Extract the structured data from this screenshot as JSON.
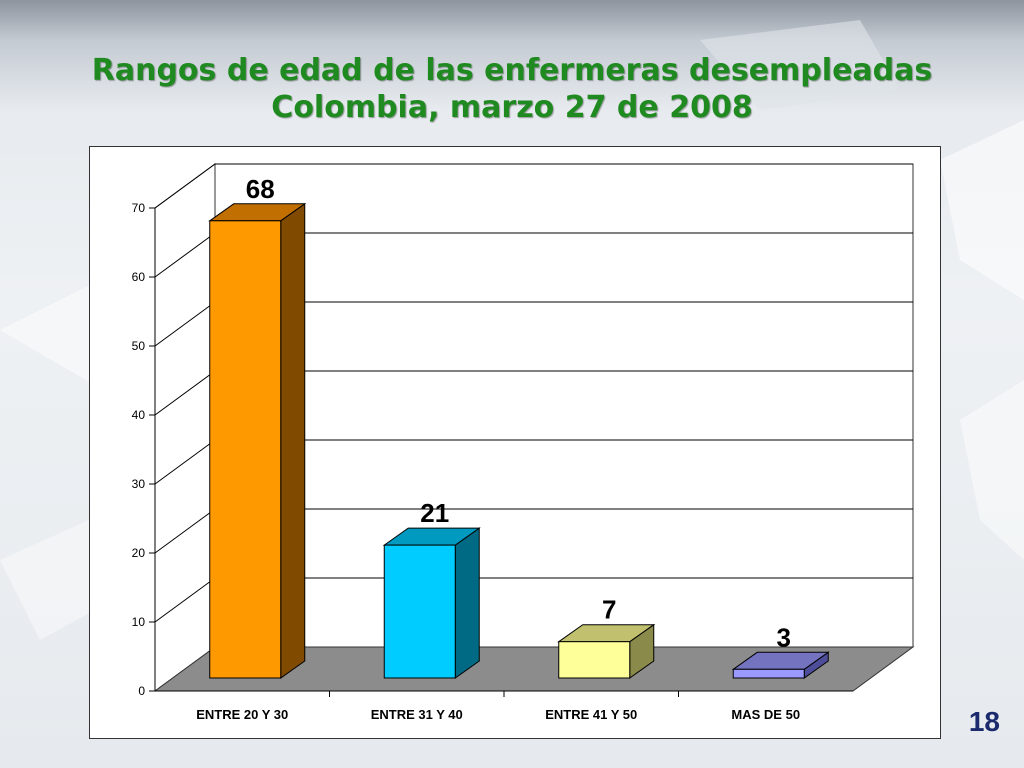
{
  "slide": {
    "title_line1": "Rangos de edad de las enfermeras desempleadas",
    "title_line2": "Colombia, marzo 27 de 2008",
    "page_number": "18"
  },
  "chart_data": {
    "type": "bar",
    "categories": [
      "ENTRE 20 Y 30",
      "ENTRE 31 Y 40",
      "ENTRE 41 Y 50",
      "MAS DE 50"
    ],
    "values": [
      68,
      21,
      7,
      3
    ],
    "data_labels": [
      "68",
      "21",
      "7",
      "3"
    ],
    "colors": [
      "#ff9900",
      "#00ccff",
      "#ffff99",
      "#9999ff"
    ],
    "side_colors": [
      "#804a00",
      "#006a85",
      "#8a8a4a",
      "#4d4d99"
    ],
    "top_colors": [
      "#c06f00",
      "#0099c0",
      "#c0c06f",
      "#7373c0"
    ],
    "floor_color": "#8c8c8c",
    "ylim": [
      0,
      70
    ],
    "yticks": [
      0,
      10,
      20,
      30,
      40,
      50,
      60,
      70
    ],
    "xlabel": "",
    "ylabel": "",
    "grid": true,
    "legend": "none",
    "three_d": true
  }
}
